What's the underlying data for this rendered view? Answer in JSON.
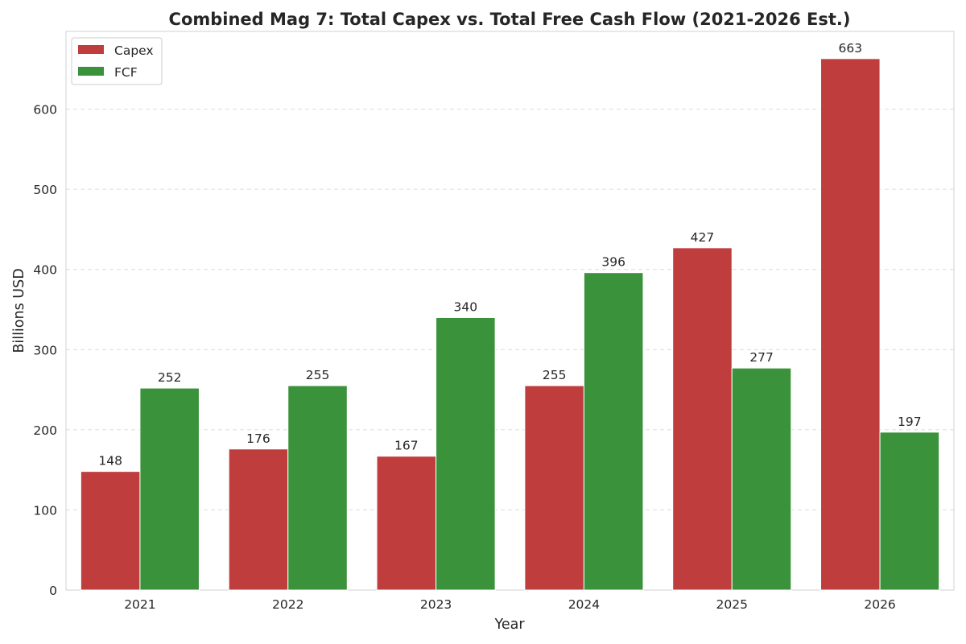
{
  "chart_data": {
    "type": "bar",
    "title": "Combined Mag 7: Total Capex vs. Total Free Cash Flow (2021-2026 Est.)",
    "xlabel": "Year",
    "ylabel": "Billions USD",
    "categories": [
      "2021",
      "2022",
      "2023",
      "2024",
      "2025",
      "2026"
    ],
    "series": [
      {
        "name": "Capex",
        "color": "#c03d3e",
        "values": [
          148,
          176,
          167,
          255,
          427,
          663
        ]
      },
      {
        "name": "FCF",
        "color": "#3a923a",
        "values": [
          252,
          255,
          340,
          396,
          277,
          197
        ]
      }
    ],
    "ylim": [
      0,
      697
    ],
    "yticks": [
      0,
      100,
      200,
      300,
      400,
      500,
      600
    ],
    "grid": "y-dashed",
    "legend": "top-left"
  }
}
